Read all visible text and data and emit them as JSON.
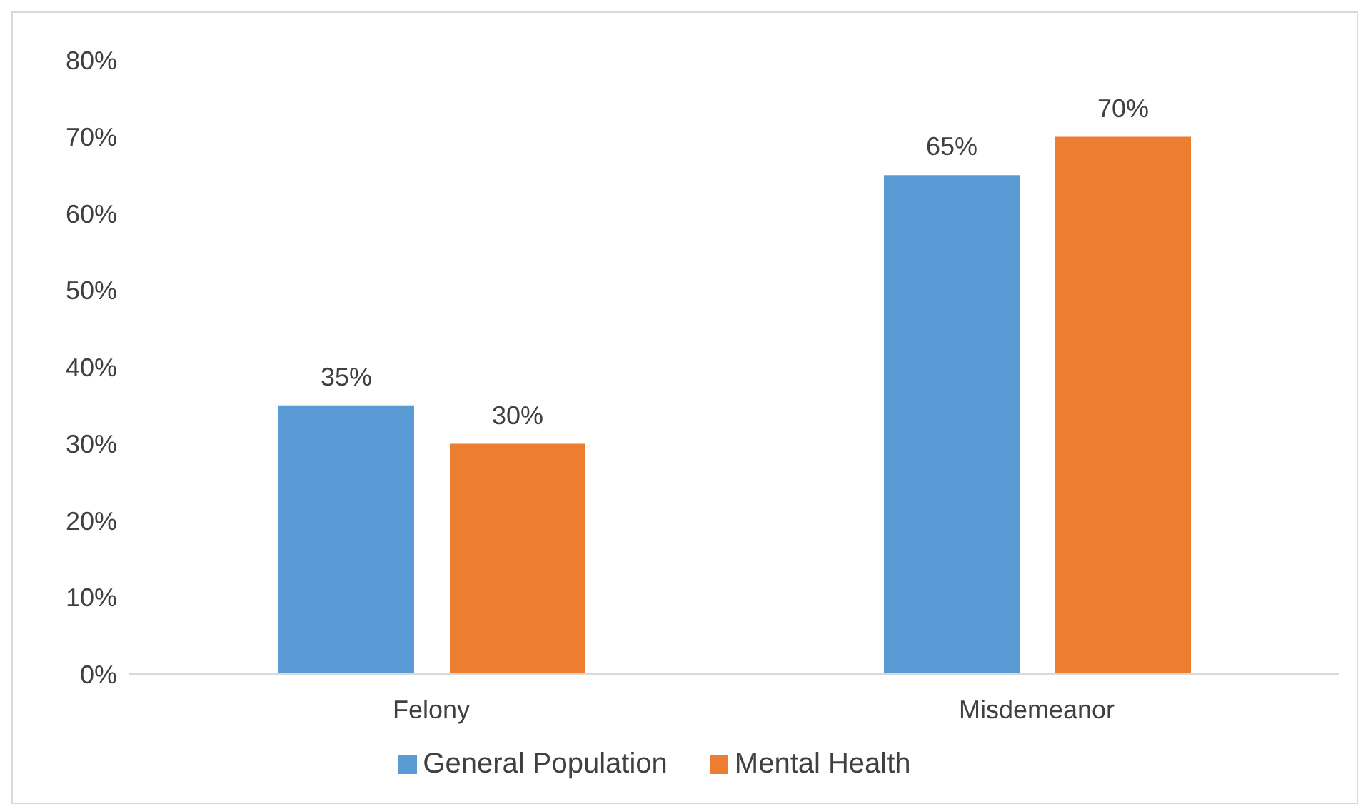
{
  "chart_data": {
    "type": "bar",
    "categories": [
      "Felony",
      "Misdemeanor"
    ],
    "series": [
      {
        "name": "General Population",
        "color": "#5b9bd5",
        "values": [
          35,
          65
        ],
        "value_labels": [
          "35%",
          "65%"
        ]
      },
      {
        "name": "Mental Health",
        "color": "#ed7d31",
        "values": [
          30,
          70
        ],
        "value_labels": [
          "30%",
          "70%"
        ]
      }
    ],
    "ylim": [
      0,
      80
    ],
    "yticks": [
      {
        "value": 0,
        "label": "0%"
      },
      {
        "value": 10,
        "label": "10%"
      },
      {
        "value": 20,
        "label": "20%"
      },
      {
        "value": 30,
        "label": "30%"
      },
      {
        "value": 40,
        "label": "40%"
      },
      {
        "value": 50,
        "label": "50%"
      },
      {
        "value": 60,
        "label": "60%"
      },
      {
        "value": 70,
        "label": "70%"
      },
      {
        "value": 80,
        "label": "80%"
      }
    ],
    "grid": false,
    "legend": "bottom"
  }
}
